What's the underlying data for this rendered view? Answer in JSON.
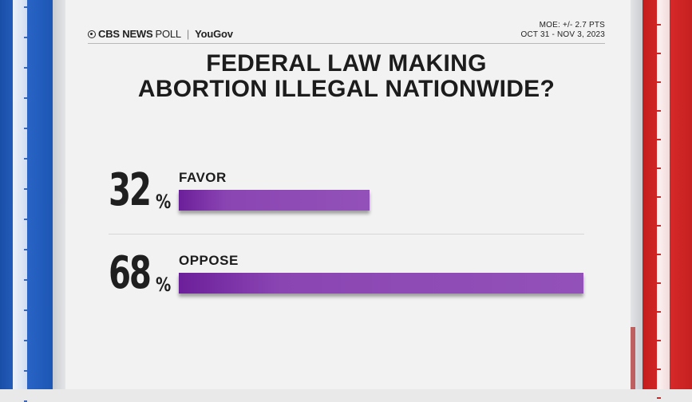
{
  "header": {
    "brand_primary": "CBS NEWS",
    "brand_secondary": "POLL",
    "partner": "YouGov",
    "moe": "MOE: +/- 2.7 PTS",
    "dates": "OCT 31 - NOV 3, 2023"
  },
  "title": {
    "line1": "FEDERAL LAW MAKING",
    "line2": "ABORTION ILLEGAL NATIONWIDE?"
  },
  "chart_data": {
    "type": "bar",
    "orientation": "horizontal",
    "title": "FEDERAL LAW MAKING ABORTION ILLEGAL NATIONWIDE?",
    "categories": [
      "FAVOR",
      "OPPOSE"
    ],
    "values": [
      32,
      68
    ],
    "value_labels": [
      "32",
      "68"
    ],
    "unit": "%",
    "xlim": [
      0,
      68
    ],
    "bar_color": "#8b45b3",
    "grid": false,
    "xlabel": "",
    "ylabel": ""
  },
  "colors": {
    "left_banner": "#1d56b4",
    "right_banner": "#c62020",
    "panel": "#f2f2f3"
  }
}
